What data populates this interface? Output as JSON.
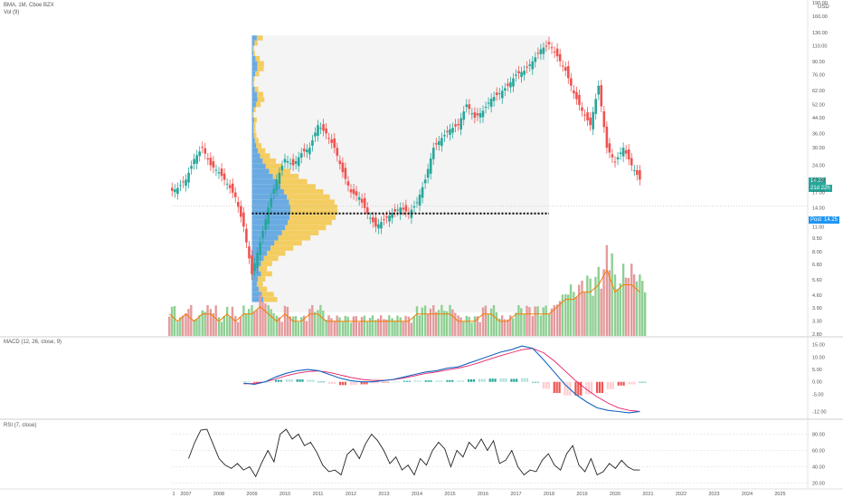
{
  "header": {
    "symbol_line": "BMA, 1M, Cboe BZX",
    "volume_label": "Vol (9)",
    "currency": "USD",
    "macd_label": "MACD (12, 26, close, 9)",
    "rsi_label": "RSI (7, close)"
  },
  "price_tags": {
    "last": "14.27",
    "countdown": "21d 22h",
    "post_label": "Post",
    "post_value": "14.25"
  },
  "colors": {
    "up": "#26a69a",
    "down": "#ef5350",
    "up_volume": "#8fcf93",
    "down_volume": "#e39a9c",
    "vol_ma": "#f57c00",
    "macd_line": "#1565c0",
    "signal_line": "#e91e63",
    "rsi_line": "#222222",
    "profile_blue": "#5aa2e0",
    "profile_yellow": "#f3c546",
    "profile_region": "#f4f4f4",
    "poc_line": "#000000",
    "last_price_tag": "#26a69a",
    "post_tag": "#2196f3"
  },
  "chart_data": [
    {
      "type": "candlestick",
      "title": "BMA, 1M, Cboe BZX",
      "y_scale": "log",
      "ylim": [
        2.8,
        190
      ],
      "y_ticks": [
        "190.00",
        "160.00",
        "130.00",
        "110.00",
        "90.00",
        "76.00",
        "62.00",
        "52.00",
        "44.00",
        "36.00",
        "30.00",
        "24.00",
        "20.00",
        "17.00",
        "14.00",
        "11.00",
        "9.50",
        "8.00",
        "6.80",
        "5.60",
        "4.60",
        "3.90",
        "3.30",
        "2.80"
      ],
      "x_ticks": [
        "1",
        "2007",
        "2008",
        "2009",
        "2010",
        "2011",
        "2012",
        "2013",
        "2014",
        "2015",
        "2016",
        "2017",
        "2018",
        "2019",
        "2020",
        "2021",
        "2022",
        "2023",
        "2024",
        "2025"
      ],
      "ohlc_monthly_close": {
        "x": [
          "2006-07",
          "2006-10",
          "2007-01",
          "2007-04",
          "2007-07",
          "2007-10",
          "2008-01",
          "2008-04",
          "2008-07",
          "2008-10",
          "2009-01",
          "2009-04",
          "2009-07",
          "2009-10",
          "2010-01",
          "2010-04",
          "2010-07",
          "2010-10",
          "2011-01",
          "2011-04",
          "2011-07",
          "2011-10",
          "2012-01",
          "2012-04",
          "2012-07",
          "2012-10",
          "2013-01",
          "2013-04",
          "2013-07",
          "2013-10",
          "2014-01",
          "2014-04",
          "2014-07",
          "2014-10",
          "2015-01",
          "2015-04",
          "2015-07",
          "2015-10",
          "2016-01",
          "2016-04",
          "2016-07",
          "2016-10",
          "2017-01",
          "2017-04",
          "2017-07",
          "2017-10",
          "2018-01",
          "2018-04",
          "2018-07",
          "2018-10",
          "2019-01",
          "2019-04",
          "2019-07",
          "2019-10",
          "2020-01",
          "2020-04",
          "2020-07",
          "2020-10"
        ],
        "close": [
          17,
          18,
          20,
          26,
          30,
          24,
          22,
          19,
          16,
          11,
          6,
          9,
          14,
          20,
          26,
          24,
          28,
          30,
          40,
          36,
          30,
          22,
          17,
          16,
          13,
          11,
          12,
          13,
          14,
          13,
          15,
          20,
          30,
          34,
          38,
          40,
          52,
          44,
          48,
          56,
          60,
          66,
          76,
          80,
          90,
          105,
          112,
          96,
          80,
          60,
          48,
          40,
          66,
          30,
          25,
          30,
          24,
          20
        ]
      },
      "poc_price": 13
    },
    {
      "type": "bar",
      "title": "Vol (9)",
      "series": [
        {
          "name": "Vol (9)",
          "values": [
            3,
            2,
            3,
            2,
            3,
            3,
            2,
            3,
            2,
            3,
            3,
            4,
            3,
            2,
            3,
            2,
            2,
            3,
            3,
            2,
            2,
            2,
            2,
            2,
            2,
            2,
            2,
            2,
            2,
            2,
            3,
            3,
            3,
            3,
            3,
            2,
            2,
            2,
            3,
            3,
            2,
            2,
            3,
            3,
            3,
            3,
            3,
            4,
            5,
            5,
            6,
            6,
            7,
            9,
            6,
            7,
            7,
            6
          ]
        }
      ]
    },
    {
      "type": "line",
      "title": "MACD (12, 26, close, 9)",
      "y_ticks": [
        "15.00",
        "10.00",
        "5.00",
        "0.00",
        "-5.00",
        "-12.00"
      ],
      "ylim": [
        -14,
        16
      ],
      "macd": [
        -0.5,
        -1,
        0,
        2,
        3.5,
        4.5,
        5,
        4.5,
        3,
        1.5,
        0.5,
        0,
        0,
        0.5,
        1,
        2,
        3,
        4,
        4.5,
        5.5,
        6,
        7.5,
        9,
        10.5,
        12,
        13,
        14.5,
        13.5,
        9,
        4,
        -1,
        -5,
        -8,
        -10.5,
        -11.5,
        -12,
        -12.5,
        -12
      ],
      "signal": [
        -0.8,
        -0.6,
        0,
        1.2,
        2.5,
        3.5,
        4.2,
        4.4,
        3.8,
        2.8,
        1.8,
        1,
        0.6,
        0.6,
        0.9,
        1.6,
        2.5,
        3.4,
        4,
        4.8,
        5.5,
        6.5,
        7.8,
        9.2,
        10.6,
        11.8,
        13,
        13.5,
        11.8,
        8.5,
        4.5,
        0.5,
        -3,
        -6,
        -8.5,
        -10.5,
        -11.5,
        -12
      ],
      "histogram": [
        0.3,
        -0.4,
        0,
        0.8,
        1,
        1,
        0.8,
        0.1,
        -0.8,
        -1.3,
        -1.3,
        -1,
        -0.6,
        -0.1,
        0.1,
        0.4,
        0.5,
        0.6,
        0.5,
        0.7,
        0.5,
        1,
        1.2,
        1.3,
        1.4,
        1.2,
        1.5,
        0,
        -2.8,
        -4.5,
        -5.5,
        -5.5,
        -5,
        -4.5,
        -3,
        -1.5,
        -1,
        0
      ]
    },
    {
      "type": "line",
      "title": "RSI (7, close)",
      "y_ticks": [
        "80.00",
        "60.00",
        "40.00",
        "20.00"
      ],
      "ylim": [
        15,
        95
      ],
      "values": [
        50,
        70,
        85,
        86,
        68,
        50,
        42,
        38,
        44,
        36,
        40,
        28,
        45,
        60,
        46,
        80,
        86,
        74,
        80,
        66,
        70,
        58,
        42,
        34,
        36,
        30,
        55,
        62,
        50,
        68,
        80,
        72,
        60,
        44,
        52,
        36,
        42,
        30,
        50,
        42,
        60,
        70,
        62,
        40,
        60,
        52,
        70,
        62,
        74,
        60,
        72,
        44,
        48,
        60,
        40,
        30,
        36,
        34,
        48,
        56,
        42,
        36,
        56,
        66,
        42,
        34,
        50,
        30,
        34,
        44,
        38,
        48,
        40,
        36,
        36
      ]
    }
  ]
}
